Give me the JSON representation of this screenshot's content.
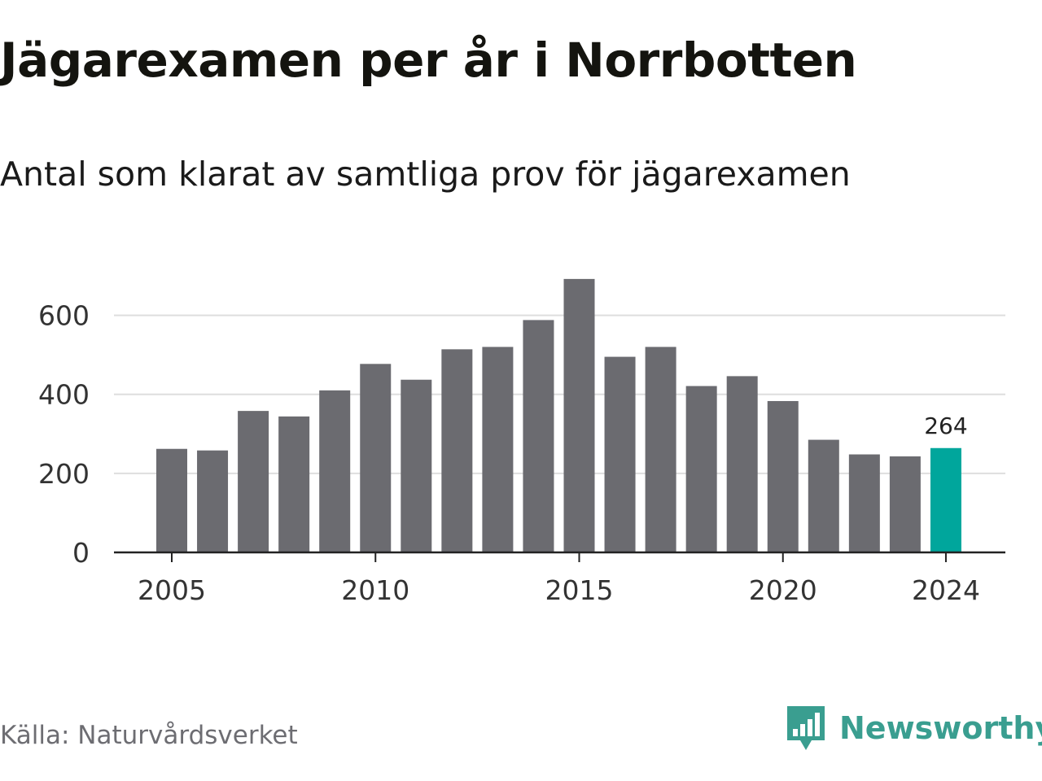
{
  "header": {
    "title": "Jägarexamen per år i Norrbotten",
    "subtitle": "Antal som klarat av samtliga prov för jägarexamen"
  },
  "footer": {
    "source": "Källa: Naturvårdsverket",
    "brand": "Newsworthy",
    "brand_icon": "newsworthy-logo-icon"
  },
  "colors": {
    "bar": "#6b6b70",
    "highlight": "#00a69c",
    "grid": "#dedede",
    "axis": "#222222",
    "brand": "#3a9e90"
  },
  "chart_data": {
    "type": "bar",
    "x": [
      2005,
      2006,
      2007,
      2008,
      2009,
      2010,
      2011,
      2012,
      2013,
      2014,
      2015,
      2016,
      2017,
      2018,
      2019,
      2020,
      2021,
      2022,
      2023,
      2024
    ],
    "values": [
      262,
      258,
      358,
      344,
      410,
      477,
      437,
      514,
      520,
      588,
      692,
      495,
      520,
      421,
      446,
      383,
      285,
      248,
      243,
      264
    ],
    "highlight": 2024,
    "data_labels": [
      {
        "x": 2024,
        "label": "264"
      }
    ],
    "xticks": [
      2005,
      2010,
      2015,
      2020,
      2024
    ],
    "yticks": [
      0,
      200,
      400,
      600
    ],
    "ylim": [
      0,
      700
    ],
    "grid": true,
    "xlabel": "",
    "ylabel": ""
  }
}
